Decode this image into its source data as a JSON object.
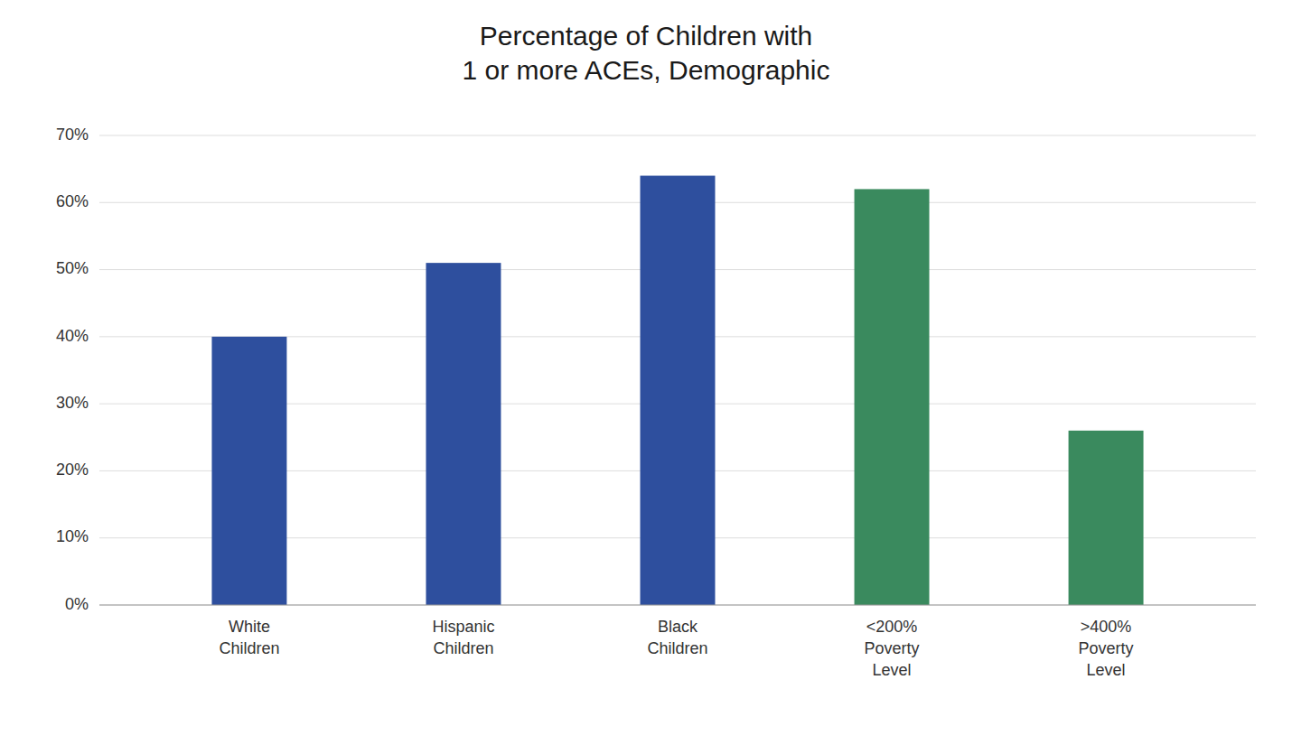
{
  "chart_data": {
    "type": "bar",
    "title": "Percentage of Children with\n1 or more ACEs, Demographic",
    "categories": [
      "White\nChildren",
      "Hispanic\nChildren",
      "Black\nChildren",
      "<200%\nPoverty\nLevel",
      ">400%\nPoverty\nLevel"
    ],
    "values": [
      40,
      51,
      64,
      62,
      26
    ],
    "colors": [
      "#2E4F9E",
      "#2E4F9E",
      "#2E4F9E",
      "#3A8A5E",
      "#3A8A5E"
    ],
    "ylim": [
      0,
      70
    ],
    "yticks": [
      {
        "value": 0,
        "label": "0%"
      },
      {
        "value": 10,
        "label": "10%"
      },
      {
        "value": 20,
        "label": "20%"
      },
      {
        "value": 30,
        "label": "30%"
      },
      {
        "value": 40,
        "label": "40%"
      },
      {
        "value": 50,
        "label": "50%"
      },
      {
        "value": 60,
        "label": "60%"
      },
      {
        "value": 70,
        "label": "70%"
      }
    ],
    "grid": true
  }
}
